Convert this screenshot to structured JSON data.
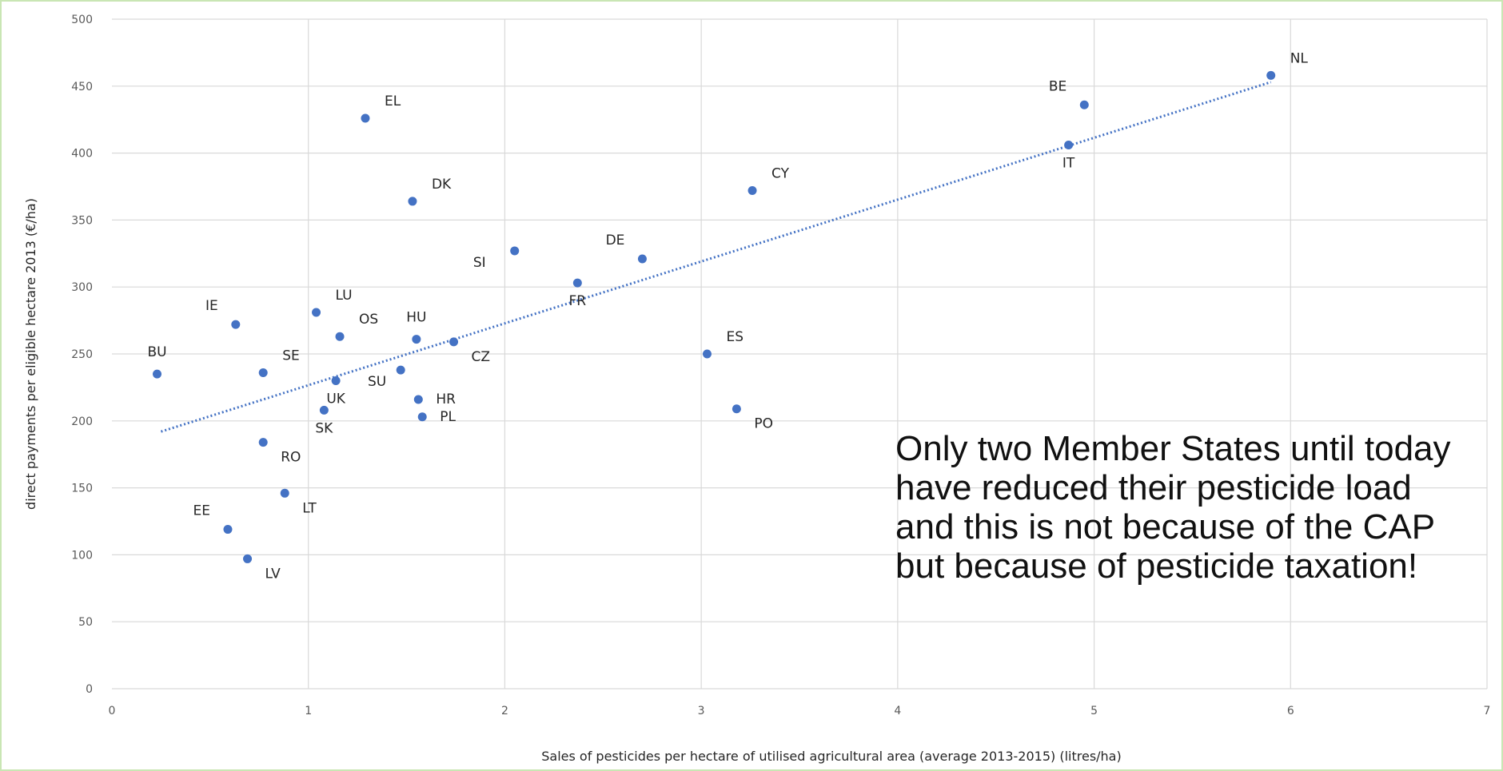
{
  "chart_data": {
    "type": "scatter",
    "title": "",
    "xlabel": "Sales of pesticides per hectare of utilised agricultural area (average 2013-2015) (litres/ha)",
    "ylabel": "direct payments per eligible hectare 2013 (€/ha)",
    "xlim": [
      0,
      7
    ],
    "ylim": [
      0,
      500
    ],
    "x_ticks": [
      0,
      1,
      2,
      3,
      4,
      5,
      6,
      7
    ],
    "y_ticks": [
      0,
      50,
      100,
      150,
      200,
      250,
      300,
      350,
      400,
      450,
      500
    ],
    "grid": "vertical and horizontal",
    "marker_color": "#4472c4",
    "trendline": {
      "style": "dotted",
      "color": "#4472c4",
      "from": [
        0.25,
        192
      ],
      "to": [
        5.9,
        453
      ]
    },
    "points": [
      {
        "label": "BU",
        "x": 0.23,
        "y": 235,
        "label_pos": "above"
      },
      {
        "label": "IE",
        "x": 0.63,
        "y": 272,
        "label_pos": "upper-left"
      },
      {
        "label": "SE",
        "x": 0.77,
        "y": 236,
        "label_pos": "upper-right"
      },
      {
        "label": "RO",
        "x": 0.77,
        "y": 184,
        "label_pos": "below-right"
      },
      {
        "label": "LT",
        "x": 0.88,
        "y": 146,
        "label_pos": "below-right"
      },
      {
        "label": "EE",
        "x": 0.59,
        "y": 119,
        "label_pos": "upper-left"
      },
      {
        "label": "LV",
        "x": 0.69,
        "y": 97,
        "label_pos": "below-right"
      },
      {
        "label": "LU",
        "x": 1.04,
        "y": 281,
        "label_pos": "upper-right"
      },
      {
        "label": "OS",
        "x": 1.16,
        "y": 263,
        "label_pos": "upper-right"
      },
      {
        "label": "UK",
        "x": 1.14,
        "y": 230,
        "label_pos": "below"
      },
      {
        "label": "SK",
        "x": 1.08,
        "y": 208,
        "label_pos": "below"
      },
      {
        "label": "EL",
        "x": 1.29,
        "y": 426,
        "label_pos": "upper-right"
      },
      {
        "label": "DK",
        "x": 1.53,
        "y": 364,
        "label_pos": "upper-right"
      },
      {
        "label": "HU",
        "x": 1.55,
        "y": 261,
        "label_pos": "above"
      },
      {
        "label": "SU",
        "x": 1.47,
        "y": 238,
        "label_pos": "below-left"
      },
      {
        "label": "HR",
        "x": 1.56,
        "y": 216,
        "label_pos": "right"
      },
      {
        "label": "PL",
        "x": 1.58,
        "y": 203,
        "label_pos": "right"
      },
      {
        "label": "CZ",
        "x": 1.74,
        "y": 259,
        "label_pos": "below-right"
      },
      {
        "label": "SI",
        "x": 2.05,
        "y": 327,
        "label_pos": "lower-left"
      },
      {
        "label": "FR",
        "x": 2.37,
        "y": 303,
        "label_pos": "below"
      },
      {
        "label": "DE",
        "x": 2.7,
        "y": 321,
        "label_pos": "upper-left"
      },
      {
        "label": "ES",
        "x": 3.03,
        "y": 250,
        "label_pos": "upper-right"
      },
      {
        "label": "PO",
        "x": 3.18,
        "y": 209,
        "label_pos": "below-right"
      },
      {
        "label": "CY",
        "x": 3.26,
        "y": 372,
        "label_pos": "upper-right"
      },
      {
        "label": "BE",
        "x": 4.95,
        "y": 436,
        "label_pos": "upper-left"
      },
      {
        "label": "IT",
        "x": 4.87,
        "y": 406,
        "label_pos": "below"
      },
      {
        "label": "NL",
        "x": 5.9,
        "y": 458,
        "label_pos": "upper-right"
      }
    ]
  },
  "annotation": {
    "text": "Only two Member States until today\nhave reduced their pesticide load\nand this is not because of the CAP\nbut because of pesticide taxation!"
  }
}
